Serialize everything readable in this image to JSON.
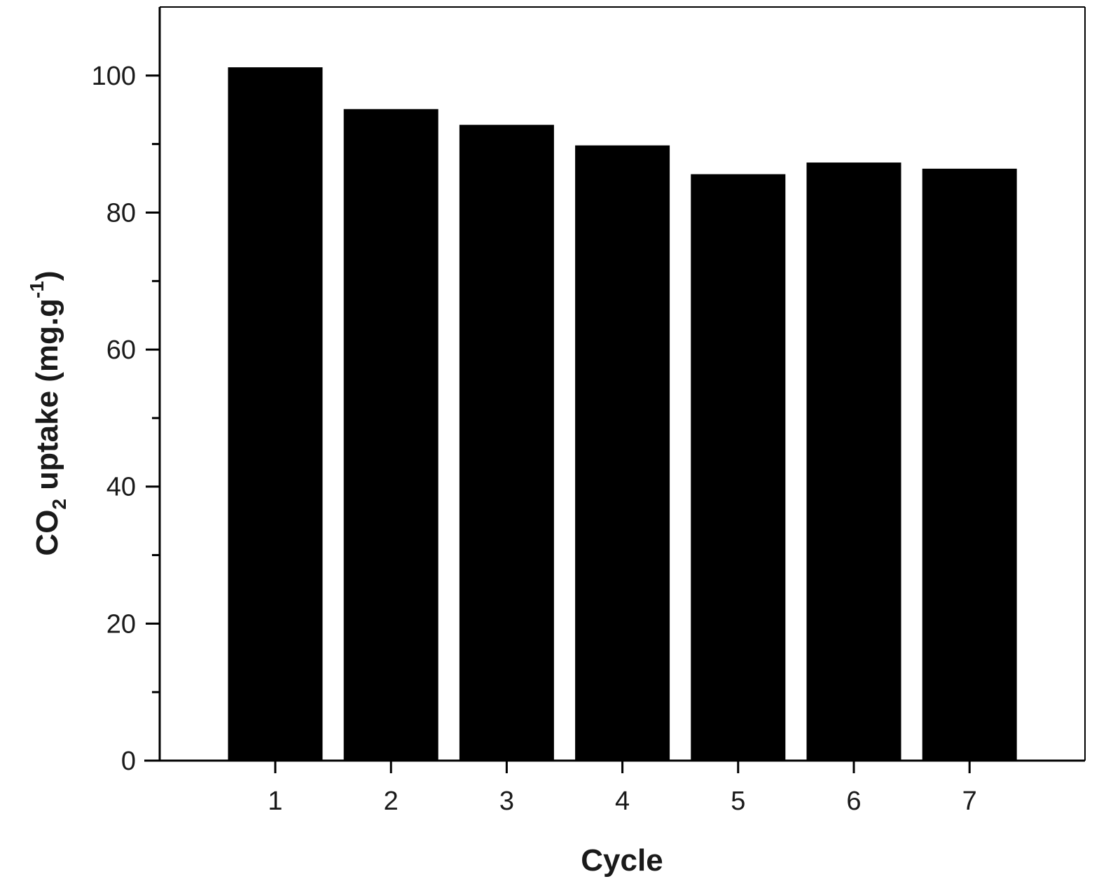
{
  "chart_data": {
    "type": "bar",
    "categories": [
      "1",
      "2",
      "3",
      "4",
      "5",
      "6",
      "7"
    ],
    "values": [
      101.2,
      95.1,
      92.8,
      89.8,
      85.6,
      87.3,
      86.4
    ],
    "xlabel": "Cycle",
    "ylabel": {
      "prefix": "CO",
      "subscript": "2",
      "middle": " uptake (mg.g",
      "superscript": "-1",
      "suffix": ")"
    },
    "ylim": [
      0,
      110
    ],
    "yticks": [
      0,
      20,
      40,
      60,
      80,
      100
    ],
    "yticks_minor": [
      10,
      30,
      50,
      70,
      90
    ],
    "grid": false,
    "bar_color": "#000000"
  }
}
